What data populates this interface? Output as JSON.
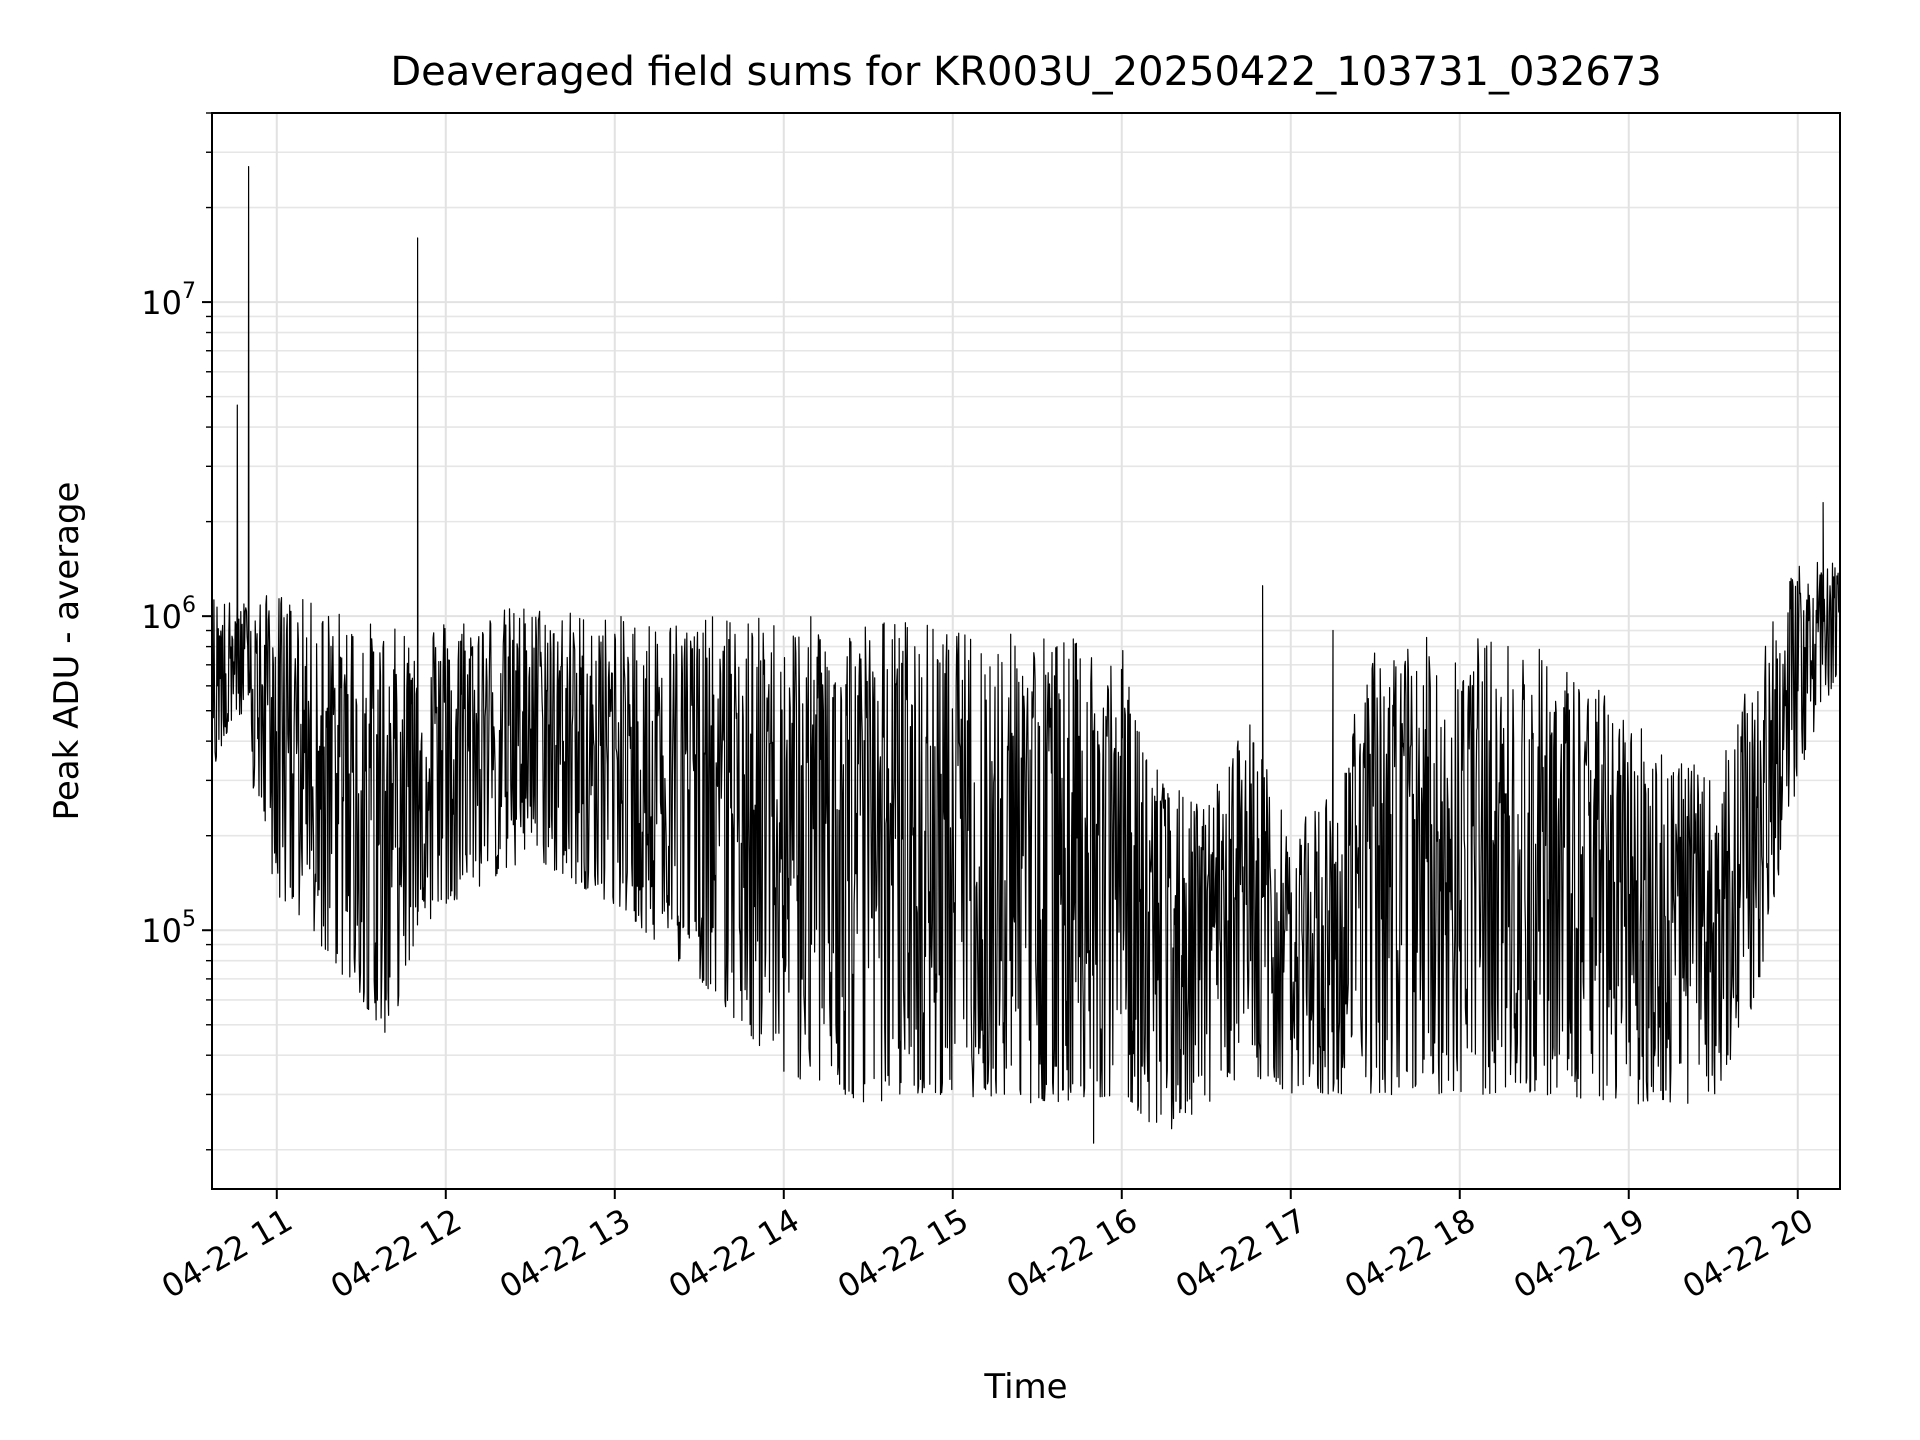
{
  "chart_data": {
    "type": "line",
    "title": "Deaveraged field sums for KR003U_20250422_103731_032673",
    "xlabel": "Time",
    "ylabel": "Peak ADU - average",
    "yscale": "log",
    "ylim": [
      15000,
      40000000
    ],
    "xlim": [
      "2025-04-22 10:37",
      "2025-04-22 20:15"
    ],
    "grid": true,
    "line_color": "#000000",
    "x_ticks": [
      {
        "value": "2025-04-22 11:00",
        "label": "04-22 11"
      },
      {
        "value": "2025-04-22 12:00",
        "label": "04-22 12"
      },
      {
        "value": "2025-04-22 13:00",
        "label": "04-22 13"
      },
      {
        "value": "2025-04-22 14:00",
        "label": "04-22 14"
      },
      {
        "value": "2025-04-22 15:00",
        "label": "04-22 15"
      },
      {
        "value": "2025-04-22 16:00",
        "label": "04-22 16"
      },
      {
        "value": "2025-04-22 17:00",
        "label": "04-22 17"
      },
      {
        "value": "2025-04-22 18:00",
        "label": "04-22 18"
      },
      {
        "value": "2025-04-22 19:00",
        "label": "04-22 19"
      },
      {
        "value": "2025-04-22 20:00",
        "label": "04-22 20"
      }
    ],
    "y_ticks": [
      {
        "value": 100000,
        "base": "10",
        "exp": "5"
      },
      {
        "value": 1000000,
        "base": "10",
        "exp": "6"
      },
      {
        "value": 10000000,
        "base": "10",
        "exp": "7"
      }
    ],
    "series": [
      {
        "envelope": [
          {
            "x": "2025-04-22 10:37",
            "high": 1200000,
            "low": 300000
          },
          {
            "x": "2025-04-22 10:45",
            "high": 1100000,
            "low": 500000
          },
          {
            "x": "2025-04-22 11:00",
            "high": 1200000,
            "low": 130000
          },
          {
            "x": "2025-04-22 11:15",
            "high": 1100000,
            "low": 90000
          },
          {
            "x": "2025-04-22 11:30",
            "high": 1000000,
            "low": 60000
          },
          {
            "x": "2025-04-22 11:40",
            "high": 900000,
            "low": 45000
          },
          {
            "x": "2025-04-22 11:50",
            "high": 1000000,
            "low": 100000
          },
          {
            "x": "2025-04-22 12:00",
            "high": 1000000,
            "low": 120000
          },
          {
            "x": "2025-04-22 12:30",
            "high": 1100000,
            "low": 170000
          },
          {
            "x": "2025-04-22 13:00",
            "high": 1000000,
            "low": 120000
          },
          {
            "x": "2025-04-22 13:30",
            "high": 1000000,
            "low": 70000
          },
          {
            "x": "2025-04-22 14:00",
            "high": 1000000,
            "low": 35000
          },
          {
            "x": "2025-04-22 14:30",
            "high": 1000000,
            "low": 28000
          },
          {
            "x": "2025-04-22 14:45",
            "high": 1000000,
            "low": 30000
          },
          {
            "x": "2025-04-22 15:00",
            "high": 900000,
            "low": 30000
          },
          {
            "x": "2025-04-22 15:30",
            "high": 900000,
            "low": 28000
          },
          {
            "x": "2025-04-22 16:00",
            "high": 800000,
            "low": 30000
          },
          {
            "x": "2025-04-22 16:15",
            "high": 300000,
            "low": 22000
          },
          {
            "x": "2025-04-22 16:30",
            "high": 250000,
            "low": 28000
          },
          {
            "x": "2025-04-22 16:45",
            "high": 500000,
            "low": 35000
          },
          {
            "x": "2025-04-22 17:00",
            "high": 200000,
            "low": 30000
          },
          {
            "x": "2025-04-22 17:15",
            "high": 300000,
            "low": 30000
          },
          {
            "x": "2025-04-22 17:30",
            "high": 800000,
            "low": 30000
          },
          {
            "x": "2025-04-22 18:00",
            "high": 900000,
            "low": 30000
          },
          {
            "x": "2025-04-22 18:30",
            "high": 800000,
            "low": 30000
          },
          {
            "x": "2025-04-22 19:00",
            "high": 500000,
            "low": 28000
          },
          {
            "x": "2025-04-22 19:30",
            "high": 300000,
            "low": 28000
          },
          {
            "x": "2025-04-22 19:45",
            "high": 700000,
            "low": 60000
          },
          {
            "x": "2025-04-22 20:00",
            "high": 1500000,
            "low": 300000
          },
          {
            "x": "2025-04-22 20:15",
            "high": 1500000,
            "low": 700000
          }
        ],
        "spikes": [
          {
            "x": "2025-04-22 10:46",
            "y": 4700000
          },
          {
            "x": "2025-04-22 10:50",
            "y": 27000000
          },
          {
            "x": "2025-04-22 11:50",
            "y": 16000000
          },
          {
            "x": "2025-04-22 15:50",
            "y": 21000
          },
          {
            "x": "2025-04-22 16:50",
            "y": 1250000
          },
          {
            "x": "2025-04-22 17:15",
            "y": 900000
          },
          {
            "x": "2025-04-22 20:09",
            "y": 2300000
          }
        ]
      }
    ]
  }
}
